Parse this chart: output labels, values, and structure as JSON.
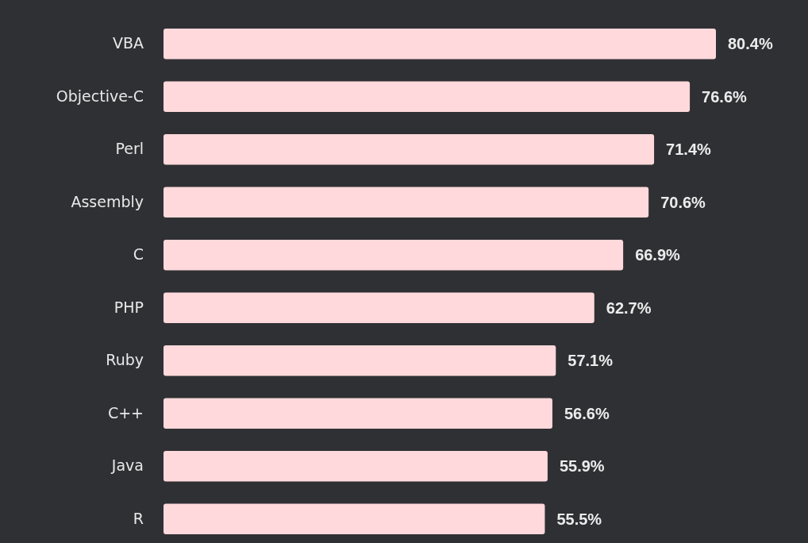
{
  "chart_data": {
    "type": "bar",
    "orientation": "horizontal",
    "categories": [
      "VBA",
      "Objective-C",
      "Perl",
      "Assembly",
      "C",
      "PHP",
      "Ruby",
      "C++",
      "Java",
      "R"
    ],
    "values": [
      80.4,
      76.6,
      71.4,
      70.6,
      66.9,
      62.7,
      57.1,
      56.6,
      55.9,
      55.5
    ],
    "value_labels": [
      "80.4%",
      "76.6%",
      "71.4%",
      "70.6%",
      "66.9%",
      "62.7%",
      "57.1%",
      "56.6%",
      "55.9%",
      "55.5%"
    ],
    "color": "#ffd9db"
  }
}
